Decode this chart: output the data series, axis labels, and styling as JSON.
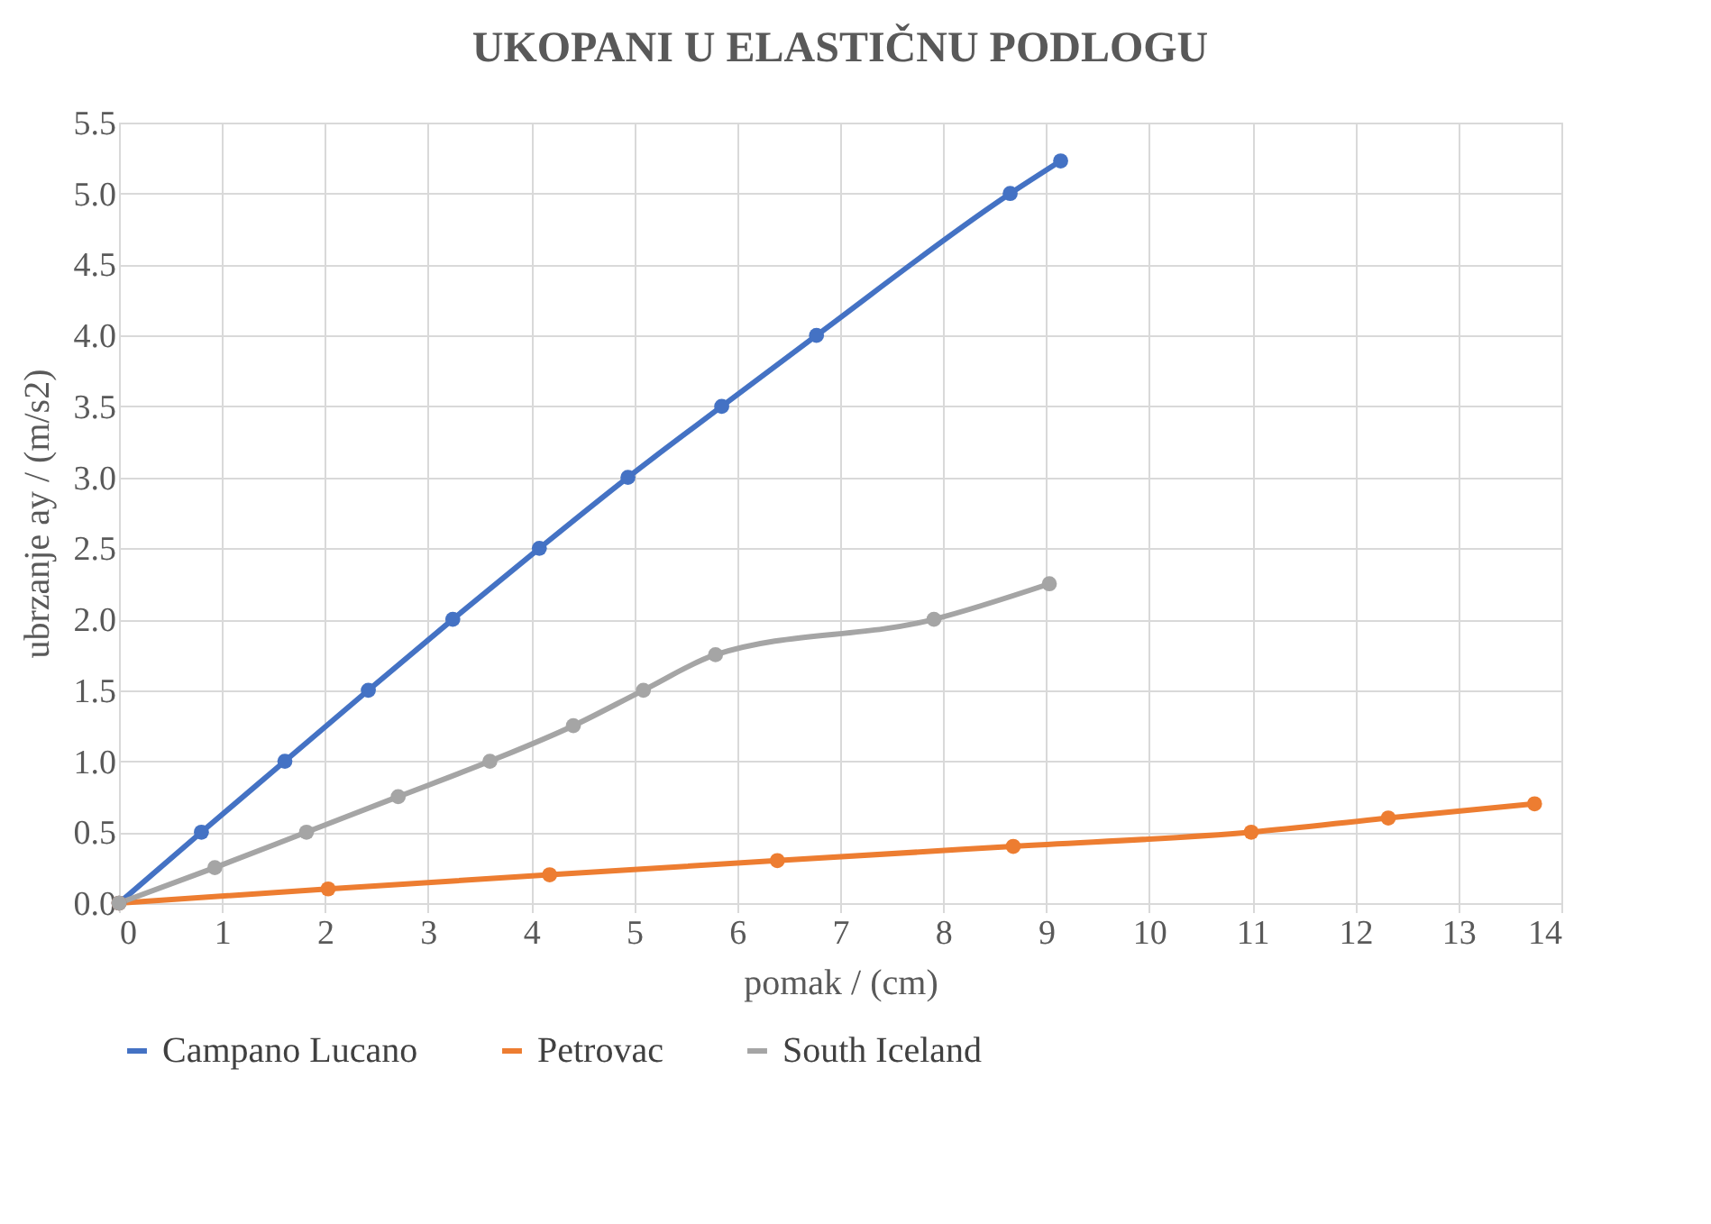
{
  "chart_data": {
    "type": "line",
    "title": "UKOPANI U ELASTIČNU PODLOGU",
    "xlabel": "pomak / (cm)",
    "ylabel": "ubrzanje ay / (m/s2)",
    "series": [
      {
        "name": "Campano Lucano",
        "color": "#4472c4",
        "x": [
          0,
          0.8,
          1.61,
          2.42,
          3.24,
          4.08,
          4.94,
          5.85,
          6.77,
          8.65,
          9.14
        ],
        "values": [
          0,
          0.5,
          1.0,
          1.5,
          2.0,
          2.5,
          3.0,
          3.5,
          4.0,
          5.0,
          5.23
        ]
      },
      {
        "name": "Petrovac",
        "color": "#ed7d31",
        "x": [
          0,
          2.03,
          4.18,
          6.39,
          8.68,
          10.99,
          12.32,
          13.74
        ],
        "values": [
          0,
          0.1,
          0.2,
          0.3,
          0.4,
          0.5,
          0.6,
          0.7
        ]
      },
      {
        "name": "South Iceland",
        "color": "#a5a5a5",
        "x": [
          0,
          0.93,
          1.82,
          2.71,
          3.6,
          4.41,
          5.09,
          5.79,
          7.91,
          9.03
        ],
        "values": [
          0,
          0.25,
          0.5,
          0.75,
          1.0,
          1.25,
          1.5,
          1.75,
          2.0,
          2.25
        ]
      }
    ],
    "xlim": [
      0,
      14
    ],
    "xticks": [
      0,
      1,
      2,
      3,
      4,
      5,
      6,
      7,
      8,
      9,
      10,
      11,
      12,
      13,
      14
    ],
    "ylim": [
      0,
      5.5
    ],
    "yticks": [
      {
        "value": 0,
        "label": "0.0"
      },
      {
        "value": 0.5,
        "label": "0.5"
      },
      {
        "value": 1,
        "label": "1.0"
      },
      {
        "value": 1.5,
        "label": "1.5"
      },
      {
        "value": 2,
        "label": "2.0"
      },
      {
        "value": 2.5,
        "label": "2.5"
      },
      {
        "value": 3,
        "label": "3.0"
      },
      {
        "value": 3.5,
        "label": "3.5"
      },
      {
        "value": 4,
        "label": "4.0"
      },
      {
        "value": 4.5,
        "label": "4.5"
      },
      {
        "value": 5,
        "label": "5.0"
      },
      {
        "value": 5.5,
        "label": "5.5"
      }
    ],
    "grid": true,
    "legend": "bottom",
    "marker": "circle",
    "line_style": "solid"
  }
}
